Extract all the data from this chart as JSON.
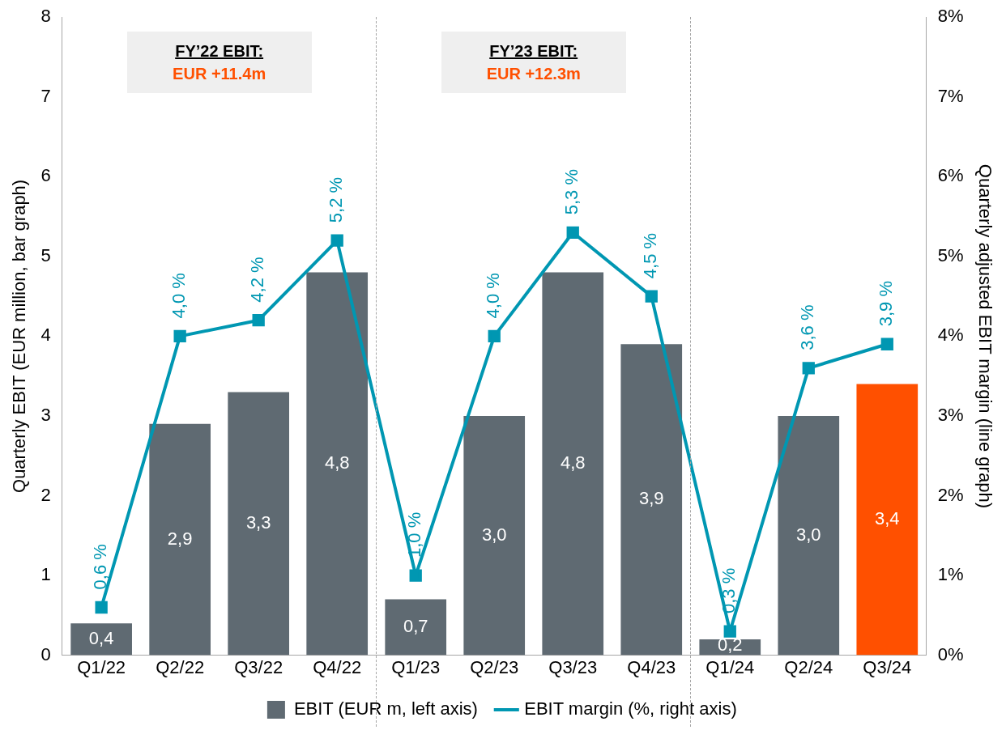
{
  "chart_data": {
    "type": "bar",
    "categories": [
      "Q1/22",
      "Q2/22",
      "Q3/22",
      "Q4/22",
      "Q1/23",
      "Q2/23",
      "Q3/23",
      "Q4/23",
      "Q1/24",
      "Q2/24",
      "Q3/24"
    ],
    "series": [
      {
        "name": "EBIT (EUR m, left axis)",
        "color": "#5f6a72",
        "colors": [
          "#5f6a72",
          "#5f6a72",
          "#5f6a72",
          "#5f6a72",
          "#5f6a72",
          "#5f6a72",
          "#5f6a72",
          "#5f6a72",
          "#5f6a72",
          "#5f6a72",
          "#ff5000"
        ],
        "values": [
          0.4,
          2.9,
          3.3,
          4.8,
          0.7,
          3.0,
          4.8,
          3.9,
          0.2,
          3.0,
          3.4
        ],
        "value_labels": [
          "0,4",
          "2,9",
          "3,3",
          "4,8",
          "0,7",
          "3,0",
          "4,8",
          "3,9",
          "0,2",
          "3,0",
          "3,4"
        ]
      },
      {
        "name": "EBIT margin (%, right axis)",
        "type": "line",
        "axis": "y2",
        "color": "#0097b2",
        "marker": "square",
        "values": [
          0.6,
          4.0,
          4.2,
          5.2,
          1.0,
          4.0,
          5.3,
          4.5,
          0.3,
          3.6,
          3.9
        ],
        "value_labels": [
          "0,6 %",
          "4,0 %",
          "4,2 %",
          "5,2 %",
          "1,0 %",
          "4,0 %",
          "5,3 %",
          "4,5 %",
          "0,3 %",
          "3,6 %",
          "3,9 %"
        ]
      }
    ],
    "ylabel": "Quarterly EBIT (EUR million, bar graph)",
    "y2label": "Quarterly adjusted EBIT margin (line graph)",
    "ylim": [
      0,
      8
    ],
    "yticks": [
      0,
      1,
      2,
      3,
      4,
      5,
      6,
      7,
      8
    ],
    "y2lim": [
      0,
      8
    ],
    "y2ticks": [
      {
        "value": 0,
        "label": "0%"
      },
      {
        "value": 1,
        "label": "1%"
      },
      {
        "value": 2,
        "label": "2%"
      },
      {
        "value": 3,
        "label": "3%"
      },
      {
        "value": 4,
        "label": "4%"
      },
      {
        "value": 5,
        "label": "5%"
      },
      {
        "value": 6,
        "label": "6%"
      },
      {
        "value": 7,
        "label": "7%"
      },
      {
        "value": 8,
        "label": "8%"
      }
    ],
    "annotations": [
      "FY’22 EBIT:",
      "EUR +11.4m",
      "FY’23 EBIT:",
      "EUR +12.3m"
    ],
    "grid": false,
    "legend": "bottom"
  }
}
